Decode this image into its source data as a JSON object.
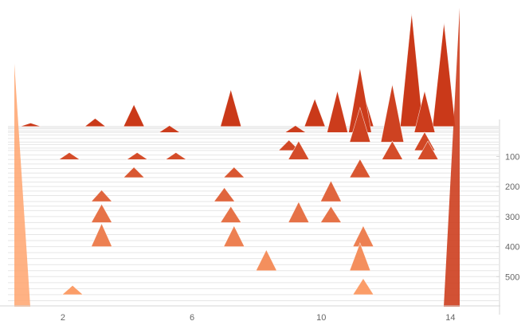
{
  "chart_data": {
    "type": "ridgeline",
    "title": "",
    "xlabel": "",
    "ylabel": "",
    "xlim": [
      0.3,
      15.1
    ],
    "ylim": [
      -10,
      600
    ],
    "x_ticks": [
      2,
      6,
      10,
      14
    ],
    "y_ticks": [
      100,
      200,
      300,
      400,
      500
    ],
    "row_ids": [
      0,
      4,
      8,
      15,
      20,
      28,
      40,
      52,
      60,
      72,
      80,
      95,
      110,
      125,
      140,
      155,
      170,
      185,
      200,
      215,
      230,
      250,
      265,
      280,
      300,
      320,
      340,
      360,
      380,
      400,
      420,
      440,
      460,
      480,
      500,
      520,
      540,
      560,
      580
    ],
    "peak_heights": [
      {
        "row": 0,
        "x": 1.0,
        "height": 0.03
      },
      {
        "row": 0,
        "x": 3.0,
        "height": 0.07
      },
      {
        "row": 0,
        "x": 4.2,
        "height": 0.19
      },
      {
        "row": 0,
        "x": 7.2,
        "height": 0.32
      },
      {
        "row": 0,
        "x": 9.8,
        "height": 0.24
      },
      {
        "row": 0,
        "x": 11.3,
        "height": 0.3
      },
      {
        "row": 0,
        "x": 12.8,
        "height": 0.98
      },
      {
        "row": 0,
        "x": 13.8,
        "height": 0.9
      },
      {
        "row": 20,
        "x": 5.3,
        "height": 0.06
      },
      {
        "row": 20,
        "x": 9.2,
        "height": 0.06
      },
      {
        "row": 20,
        "x": 10.5,
        "height": 0.36
      },
      {
        "row": 20,
        "x": 11.2,
        "height": 0.56
      },
      {
        "row": 20,
        "x": 13.2,
        "height": 0.36
      },
      {
        "row": 52,
        "x": 11.2,
        "height": 0.3
      },
      {
        "row": 52,
        "x": 12.2,
        "height": 0.5
      },
      {
        "row": 80,
        "x": 9.0,
        "height": 0.09
      },
      {
        "row": 80,
        "x": 13.2,
        "height": 0.16
      },
      {
        "row": 110,
        "x": 2.2,
        "height": 0.06
      },
      {
        "row": 110,
        "x": 4.3,
        "height": 0.06
      },
      {
        "row": 110,
        "x": 5.5,
        "height": 0.06
      },
      {
        "row": 110,
        "x": 9.3,
        "height": 0.16
      },
      {
        "row": 110,
        "x": 12.2,
        "height": 0.16
      },
      {
        "row": 110,
        "x": 13.3,
        "height": 0.16
      },
      {
        "row": 170,
        "x": 4.2,
        "height": 0.09
      },
      {
        "row": 170,
        "x": 7.3,
        "height": 0.09
      },
      {
        "row": 170,
        "x": 11.2,
        "height": 0.16
      },
      {
        "row": 250,
        "x": 3.2,
        "height": 0.1
      },
      {
        "row": 250,
        "x": 7.0,
        "height": 0.12
      },
      {
        "row": 250,
        "x": 10.3,
        "height": 0.18
      },
      {
        "row": 320,
        "x": 3.2,
        "height": 0.16
      },
      {
        "row": 320,
        "x": 7.2,
        "height": 0.14
      },
      {
        "row": 320,
        "x": 9.3,
        "height": 0.18
      },
      {
        "row": 320,
        "x": 10.3,
        "height": 0.14
      },
      {
        "row": 400,
        "x": 3.2,
        "height": 0.2
      },
      {
        "row": 400,
        "x": 7.3,
        "height": 0.18
      },
      {
        "row": 400,
        "x": 11.3,
        "height": 0.18
      },
      {
        "row": 480,
        "x": 8.3,
        "height": 0.18
      },
      {
        "row": 480,
        "x": 11.2,
        "height": 0.24
      },
      {
        "row": 560,
        "x": 2.3,
        "height": 0.08
      },
      {
        "row": 560,
        "x": 11.3,
        "height": 0.14
      }
    ]
  }
}
